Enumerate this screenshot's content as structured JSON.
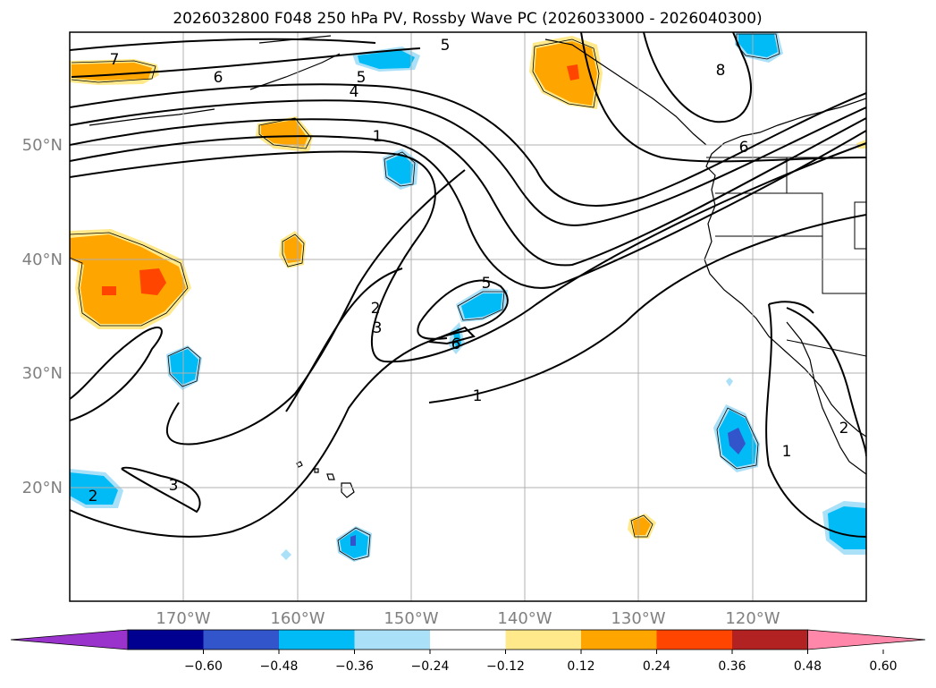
{
  "title": "2026032800 F048 250 hPa PV, Rossby Wave PC (2026033000 - 2026040300)",
  "axes": {
    "lon_labels": [
      "170°W",
      "160°W",
      "150°W",
      "140°W",
      "130°W",
      "120°W"
    ],
    "lat_labels": [
      "50°N",
      "40°N",
      "30°N",
      "20°N"
    ]
  },
  "contour_labels": [
    "7",
    "6",
    "5",
    "4",
    "5",
    "1",
    "8",
    "6",
    "2",
    "3",
    "5",
    "6",
    "1",
    "3",
    "2",
    "1",
    "2"
  ],
  "colorbar": {
    "ticks": [
      "−0.60",
      "−0.48",
      "−0.36",
      "−0.24",
      "−0.12",
      "0.12",
      "0.24",
      "0.36",
      "0.48",
      "0.60"
    ],
    "colors": [
      "#9933cc",
      "#000090",
      "#3355cc",
      "#00bbf5",
      "#aae0f8",
      "#ffffff",
      "#ffe98a",
      "#ffa500",
      "#ff4500",
      "#b22222",
      "#ff88aa"
    ]
  },
  "colors": {
    "grid": "#b0b0b0",
    "tick_label": "#808080",
    "contour": "#000000"
  }
}
